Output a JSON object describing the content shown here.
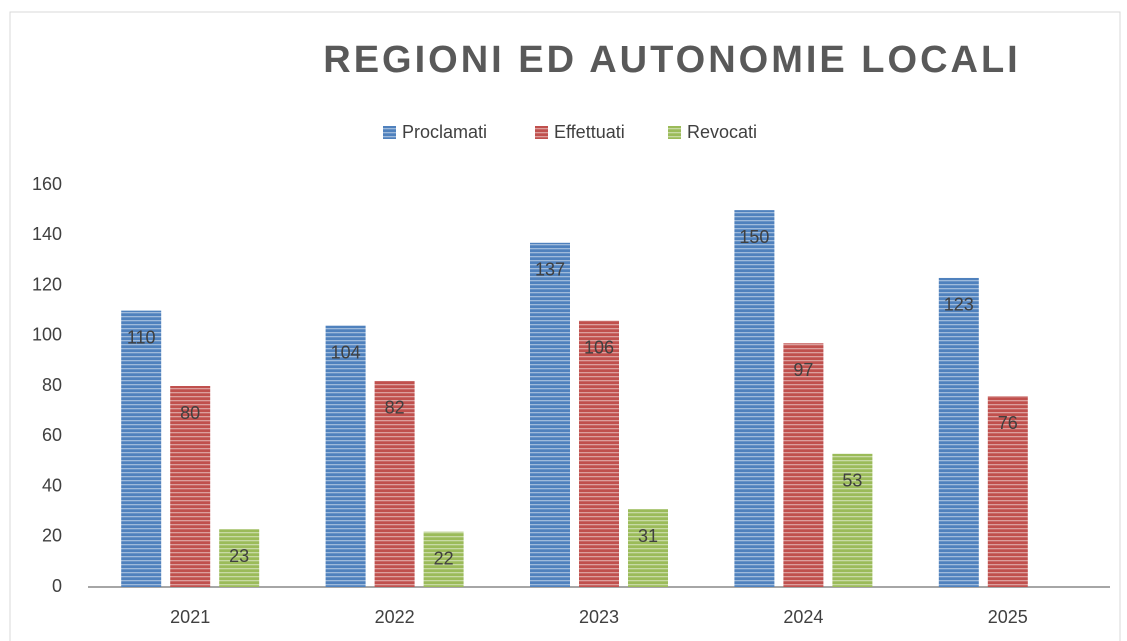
{
  "chart_data": {
    "type": "bar",
    "title": "REGIONI ED AUTONOMIE LOCALI",
    "categories": [
      "2021",
      "2022",
      "2023",
      "2024",
      "2025"
    ],
    "series": [
      {
        "name": "Proclamati",
        "color": "#4f81bd",
        "values": [
          110,
          104,
          137,
          150,
          123
        ]
      },
      {
        "name": "Effettuati",
        "color": "#c0504d",
        "values": [
          80,
          82,
          106,
          97,
          76
        ]
      },
      {
        "name": "Revocati",
        "color": "#9bbb59",
        "values": [
          23,
          22,
          31,
          53,
          null
        ]
      }
    ],
    "ylim": [
      0,
      160
    ],
    "yticks": [
      0,
      20,
      40,
      60,
      80,
      100,
      120,
      140,
      160
    ],
    "grid": false,
    "legend": "top",
    "data_labels": true
  }
}
